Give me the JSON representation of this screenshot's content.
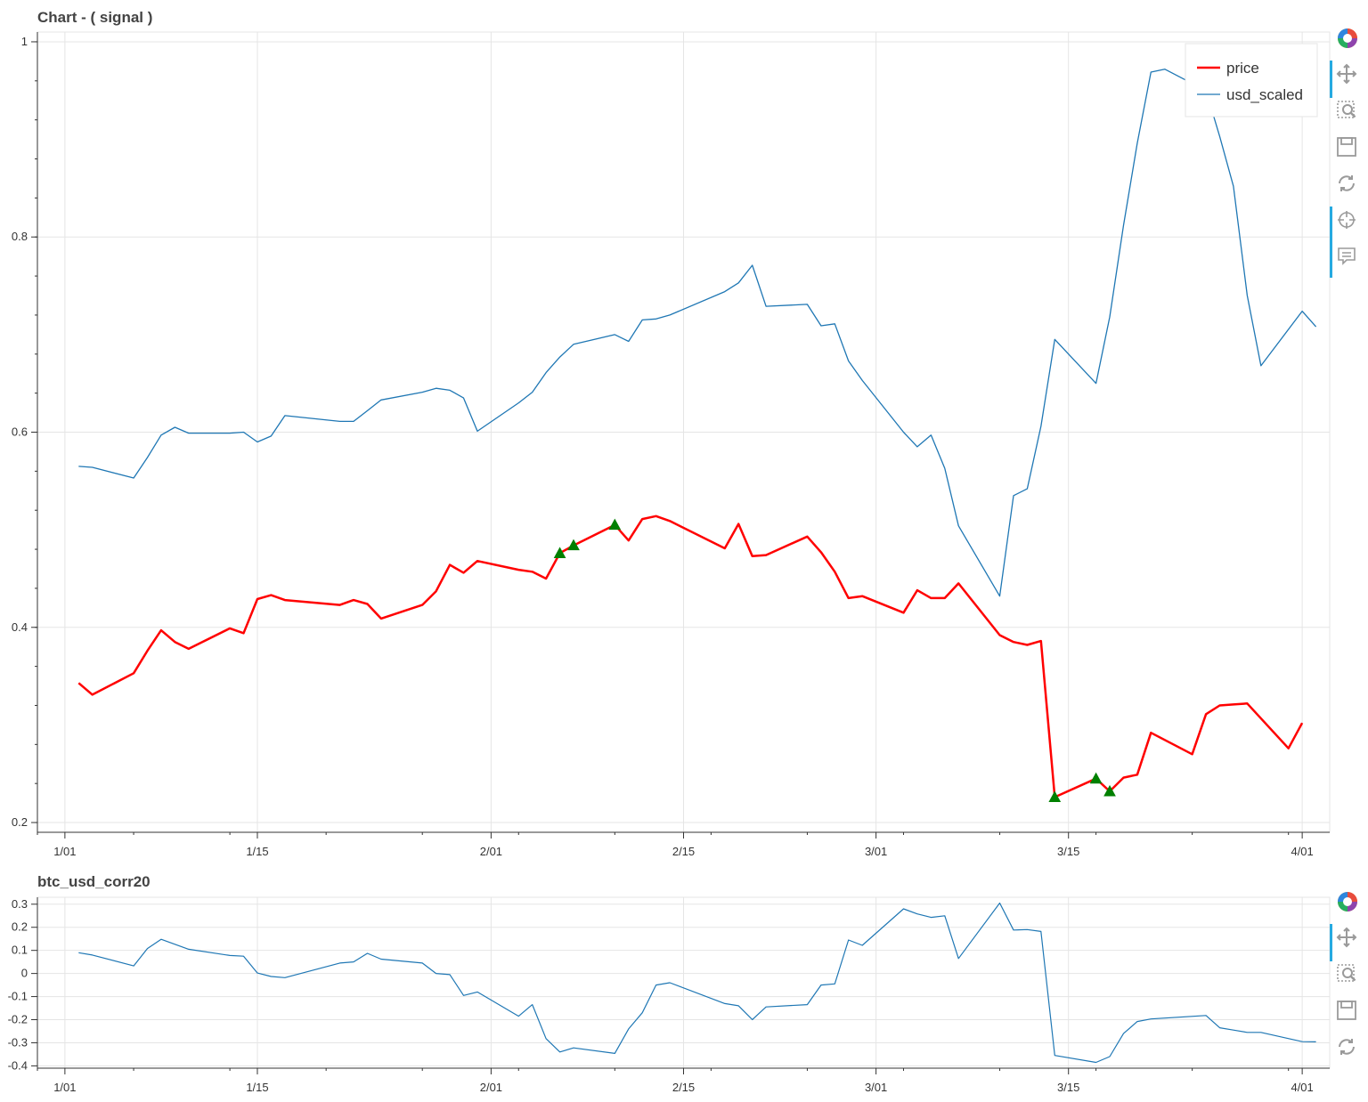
{
  "charts": {
    "main_title": "Chart - ( signal )",
    "sub_title": "btc_usd_corr20"
  },
  "colors": {
    "price": "#ff0000",
    "usd_scaled": "#1f77b4",
    "corr": "#1f77b4",
    "marker": "#008000",
    "grid": "#e5e5e5",
    "axis": "#333333"
  },
  "toolbar": {
    "main_tools": [
      "bokeh-logo-icon",
      "pan-icon",
      "box-zoom-icon",
      "save-icon",
      "reset-icon",
      "crosshair-icon",
      "hover-icon"
    ],
    "sub_tools": [
      "bokeh-logo-icon",
      "pan-icon",
      "box-zoom-icon",
      "save-icon",
      "reset-icon"
    ]
  },
  "chart_data": [
    {
      "type": "line",
      "title": "Chart - ( signal )",
      "x_axis": "date",
      "xlim": [
        "2024-12-30",
        "2025-04-03"
      ],
      "ylim": [
        0.19,
        1.01
      ],
      "x_ticks": [
        "1/01",
        "1/15",
        "2/01",
        "2/15",
        "3/01",
        "3/15",
        "4/01"
      ],
      "y_ticks": [
        0.2,
        0.4,
        0.6,
        0.8,
        1
      ],
      "y_tick_labels": [
        "0.2",
        "0.4",
        "0.6",
        "0.8",
        "1"
      ],
      "grid": true,
      "legend_position": "top-right",
      "series": [
        {
          "name": "price",
          "points": [
            [
              "2025-01-02",
              0.343
            ],
            [
              "2025-01-03",
              0.331
            ],
            [
              "2025-01-06",
              0.353
            ],
            [
              "2025-01-07",
              0.376
            ],
            [
              "2025-01-08",
              0.397
            ],
            [
              "2025-01-09",
              0.385
            ],
            [
              "2025-01-10",
              0.378
            ],
            [
              "2025-01-13",
              0.399
            ],
            [
              "2025-01-14",
              0.394
            ],
            [
              "2025-01-15",
              0.429
            ],
            [
              "2025-01-16",
              0.433
            ],
            [
              "2025-01-17",
              0.428
            ],
            [
              "2025-01-21",
              0.423
            ],
            [
              "2025-01-22",
              0.428
            ],
            [
              "2025-01-23",
              0.424
            ],
            [
              "2025-01-24",
              0.409
            ],
            [
              "2025-01-27",
              0.423
            ],
            [
              "2025-01-28",
              0.437
            ],
            [
              "2025-01-29",
              0.464
            ],
            [
              "2025-01-30",
              0.456
            ],
            [
              "2025-01-31",
              0.468
            ],
            [
              "2025-02-03",
              0.459
            ],
            [
              "2025-02-04",
              0.457
            ],
            [
              "2025-02-05",
              0.45
            ],
            [
              "2025-02-06",
              0.476
            ],
            [
              "2025-02-07",
              0.484
            ],
            [
              "2025-02-10",
              0.505
            ],
            [
              "2025-02-11",
              0.489
            ],
            [
              "2025-02-12",
              0.511
            ],
            [
              "2025-02-13",
              0.514
            ],
            [
              "2025-02-14",
              0.509
            ],
            [
              "2025-02-18",
              0.481
            ],
            [
              "2025-02-19",
              0.506
            ],
            [
              "2025-02-20",
              0.473
            ],
            [
              "2025-02-21",
              0.474
            ],
            [
              "2025-02-24",
              0.493
            ],
            [
              "2025-02-25",
              0.477
            ],
            [
              "2025-02-26",
              0.457
            ],
            [
              "2025-02-27",
              0.43
            ],
            [
              "2025-02-28",
              0.432
            ],
            [
              "2025-03-03",
              0.415
            ],
            [
              "2025-03-04",
              0.438
            ],
            [
              "2025-03-05",
              0.43
            ],
            [
              "2025-03-06",
              0.43
            ],
            [
              "2025-03-07",
              0.445
            ],
            [
              "2025-03-10",
              0.392
            ],
            [
              "2025-03-11",
              0.385
            ],
            [
              "2025-03-12",
              0.382
            ],
            [
              "2025-03-13",
              0.386
            ],
            [
              "2025-03-14",
              0.226
            ],
            [
              "2025-03-17",
              0.245
            ],
            [
              "2025-03-18",
              0.232
            ],
            [
              "2025-03-19",
              0.246
            ],
            [
              "2025-03-20",
              0.249
            ],
            [
              "2025-03-21",
              0.292
            ],
            [
              "2025-03-24",
              0.27
            ],
            [
              "2025-03-25",
              0.311
            ],
            [
              "2025-03-26",
              0.32
            ],
            [
              "2025-03-27",
              0.321
            ],
            [
              "2025-03-28",
              0.322
            ],
            [
              "2025-03-31",
              0.276
            ],
            [
              "2025-04-01",
              0.302
            ]
          ]
        },
        {
          "name": "usd_scaled",
          "points": [
            [
              "2025-01-02",
              0.565
            ],
            [
              "2025-01-03",
              0.564
            ],
            [
              "2025-01-06",
              0.553
            ],
            [
              "2025-01-07",
              0.574
            ],
            [
              "2025-01-08",
              0.597
            ],
            [
              "2025-01-09",
              0.605
            ],
            [
              "2025-01-10",
              0.599
            ],
            [
              "2025-01-13",
              0.599
            ],
            [
              "2025-01-14",
              0.6
            ],
            [
              "2025-01-15",
              0.59
            ],
            [
              "2025-01-16",
              0.596
            ],
            [
              "2025-01-17",
              0.617
            ],
            [
              "2025-01-21",
              0.611
            ],
            [
              "2025-01-22",
              0.611
            ],
            [
              "2025-01-23",
              0.622
            ],
            [
              "2025-01-24",
              0.633
            ],
            [
              "2025-01-27",
              0.641
            ],
            [
              "2025-01-28",
              0.645
            ],
            [
              "2025-01-29",
              0.643
            ],
            [
              "2025-01-30",
              0.635
            ],
            [
              "2025-01-31",
              0.601
            ],
            [
              "2025-02-03",
              0.63
            ],
            [
              "2025-02-04",
              0.641
            ],
            [
              "2025-02-05",
              0.661
            ],
            [
              "2025-02-06",
              0.677
            ],
            [
              "2025-02-07",
              0.69
            ],
            [
              "2025-02-10",
              0.7
            ],
            [
              "2025-02-11",
              0.693
            ],
            [
              "2025-02-12",
              0.715
            ],
            [
              "2025-02-13",
              0.716
            ],
            [
              "2025-02-14",
              0.72
            ],
            [
              "2025-02-18",
              0.744
            ],
            [
              "2025-02-19",
              0.753
            ],
            [
              "2025-02-20",
              0.771
            ],
            [
              "2025-02-21",
              0.729
            ],
            [
              "2025-02-24",
              0.731
            ],
            [
              "2025-02-25",
              0.709
            ],
            [
              "2025-02-26",
              0.711
            ],
            [
              "2025-02-27",
              0.673
            ],
            [
              "2025-02-28",
              0.653
            ],
            [
              "2025-03-03",
              0.6
            ],
            [
              "2025-03-04",
              0.585
            ],
            [
              "2025-03-05",
              0.597
            ],
            [
              "2025-03-06",
              0.563
            ],
            [
              "2025-03-07",
              0.504
            ],
            [
              "2025-03-10",
              0.432
            ],
            [
              "2025-03-11",
              0.535
            ],
            [
              "2025-03-12",
              0.542
            ],
            [
              "2025-03-13",
              0.606
            ],
            [
              "2025-03-14",
              0.695
            ],
            [
              "2025-03-17",
              0.65
            ],
            [
              "2025-03-18",
              0.718
            ],
            [
              "2025-03-19",
              0.812
            ],
            [
              "2025-03-20",
              0.896
            ],
            [
              "2025-03-21",
              0.969
            ],
            [
              "2025-03-22",
              0.972
            ],
            [
              "2025-03-25",
              0.95
            ],
            [
              "2025-03-26",
              0.903
            ],
            [
              "2025-03-27",
              0.852
            ],
            [
              "2025-03-28",
              0.74
            ],
            [
              "2025-03-29",
              0.668
            ],
            [
              "2025-04-01",
              0.724
            ],
            [
              "2025-04-02",
              0.708
            ]
          ]
        }
      ],
      "markers": {
        "shape": "triangle",
        "points": [
          [
            "2025-02-06",
            0.476
          ],
          [
            "2025-02-07",
            0.484
          ],
          [
            "2025-02-10",
            0.505
          ],
          [
            "2025-03-14",
            0.226
          ],
          [
            "2025-03-17",
            0.245
          ],
          [
            "2025-03-18",
            0.232
          ]
        ]
      }
    },
    {
      "type": "line",
      "title": "btc_usd_corr20",
      "x_axis": "date",
      "xlim": [
        "2024-12-30",
        "2025-04-03"
      ],
      "ylim": [
        -0.41,
        0.33
      ],
      "x_ticks": [
        "1/01",
        "1/15",
        "2/01",
        "2/15",
        "3/01",
        "3/15",
        "4/01"
      ],
      "y_ticks": [
        0.3,
        0.2,
        0.1,
        0,
        -0.1,
        -0.2,
        -0.3,
        -0.4
      ],
      "y_tick_labels": [
        "0.3",
        "0.2",
        "0.1",
        "0",
        "-0.1",
        "-0.2",
        "-0.3",
        "-0.4"
      ],
      "grid": true,
      "series": [
        {
          "name": "btc_usd_corr20",
          "points": [
            [
              "2025-01-02",
              0.09
            ],
            [
              "2025-01-03",
              0.08
            ],
            [
              "2025-01-06",
              0.033
            ],
            [
              "2025-01-07",
              0.108
            ],
            [
              "2025-01-08",
              0.148
            ],
            [
              "2025-01-10",
              0.105
            ],
            [
              "2025-01-13",
              0.078
            ],
            [
              "2025-01-14",
              0.075
            ],
            [
              "2025-01-15",
              0.002
            ],
            [
              "2025-01-16",
              -0.013
            ],
            [
              "2025-01-17",
              -0.018
            ],
            [
              "2025-01-21",
              0.045
            ],
            [
              "2025-01-22",
              0.05
            ],
            [
              "2025-01-23",
              0.087
            ],
            [
              "2025-01-24",
              0.062
            ],
            [
              "2025-01-27",
              0.045
            ],
            [
              "2025-01-28",
              0.0
            ],
            [
              "2025-01-29",
              -0.005
            ],
            [
              "2025-01-30",
              -0.095
            ],
            [
              "2025-01-31",
              -0.08
            ],
            [
              "2025-02-03",
              -0.185
            ],
            [
              "2025-02-04",
              -0.135
            ],
            [
              "2025-02-05",
              -0.282
            ],
            [
              "2025-02-06",
              -0.34
            ],
            [
              "2025-02-07",
              -0.322
            ],
            [
              "2025-02-10",
              -0.346
            ],
            [
              "2025-02-11",
              -0.24
            ],
            [
              "2025-02-12",
              -0.17
            ],
            [
              "2025-02-13",
              -0.05
            ],
            [
              "2025-02-14",
              -0.04
            ],
            [
              "2025-02-18",
              -0.13
            ],
            [
              "2025-02-19",
              -0.14
            ],
            [
              "2025-02-20",
              -0.2
            ],
            [
              "2025-02-21",
              -0.145
            ],
            [
              "2025-02-24",
              -0.135
            ],
            [
              "2025-02-25",
              -0.05
            ],
            [
              "2025-02-26",
              -0.045
            ],
            [
              "2025-02-27",
              0.145
            ],
            [
              "2025-02-28",
              0.122
            ],
            [
              "2025-03-03",
              0.28
            ],
            [
              "2025-03-04",
              0.258
            ],
            [
              "2025-03-05",
              0.243
            ],
            [
              "2025-03-06",
              0.25
            ],
            [
              "2025-03-07",
              0.065
            ],
            [
              "2025-03-10",
              0.305
            ],
            [
              "2025-03-11",
              0.188
            ],
            [
              "2025-03-12",
              0.19
            ],
            [
              "2025-03-13",
              0.182
            ],
            [
              "2025-03-14",
              -0.355
            ],
            [
              "2025-03-17",
              -0.385
            ],
            [
              "2025-03-18",
              -0.36
            ],
            [
              "2025-03-19",
              -0.26
            ],
            [
              "2025-03-20",
              -0.208
            ],
            [
              "2025-03-21",
              -0.197
            ],
            [
              "2025-03-25",
              -0.182
            ],
            [
              "2025-03-26",
              -0.235
            ],
            [
              "2025-03-27",
              -0.245
            ],
            [
              "2025-03-28",
              -0.255
            ],
            [
              "2025-03-29",
              -0.255
            ],
            [
              "2025-04-01",
              -0.295
            ],
            [
              "2025-04-02",
              -0.296
            ]
          ]
        }
      ]
    }
  ]
}
